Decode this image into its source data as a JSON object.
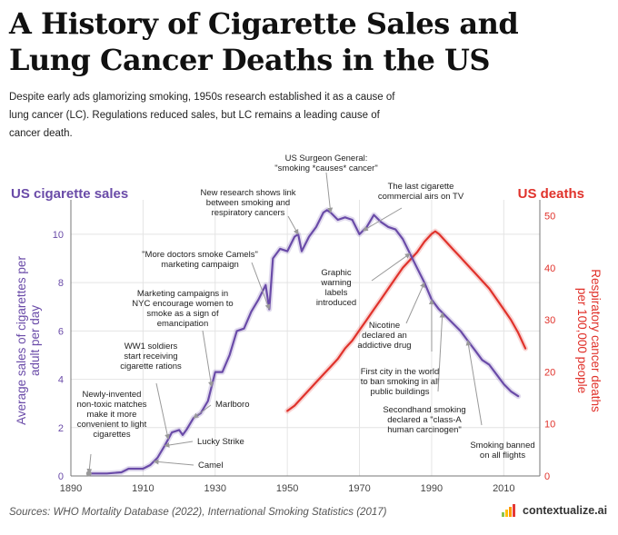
{
  "title_lines": [
    "A History of Cigarette Sales and",
    "Lung Cancer Deaths in the US"
  ],
  "subtitle": "Despite early ads glamorizing smoking, 1950s research established it as a cause of lung cancer (LC). Regulations reduced sales, but LC remains a leading cause of cancer death.",
  "sources": "Sources: WHO Mortality Database (2022), International Smoking Statistics (2017)",
  "brand": {
    "name": "contextualize.ai",
    "icon": "bar-chart-logo-icon"
  },
  "colors": {
    "sales": "#6a4ba8",
    "deaths": "#e0322b",
    "axis": "#777777",
    "arrow": "#999999"
  },
  "chart_data": {
    "type": "line",
    "left_axis_title": "US cigarette sales",
    "right_axis_title": "US deaths",
    "xlim": [
      1890,
      2020
    ],
    "xticks": [
      1890,
      1910,
      1930,
      1950,
      1970,
      1990,
      2010
    ],
    "ylabel": "Average sales of cigarettes per adult per day",
    "ylim": [
      0,
      11.2
    ],
    "yticks": [
      0,
      2,
      4,
      6,
      8,
      10
    ],
    "y2label": "Respiratory cancer deaths per 100,000 people",
    "y2lim": [
      0,
      52
    ],
    "y2ticks": [
      0,
      10,
      20,
      30,
      40,
      50
    ],
    "series": [
      {
        "name": "Cigarette sales",
        "axis": "left",
        "x": [
          1895,
          1900,
          1904,
          1906,
          1910,
          1912,
          1914,
          1916,
          1918,
          1920,
          1921,
          1922,
          1924,
          1926,
          1928,
          1930,
          1932,
          1934,
          1936,
          1938,
          1940,
          1942,
          1944,
          1945,
          1946,
          1948,
          1950,
          1952,
          1953,
          1954,
          1956,
          1958,
          1960,
          1961,
          1962,
          1964,
          1966,
          1968,
          1970,
          1972,
          1974,
          1976,
          1978,
          1980,
          1982,
          1984,
          1986,
          1988,
          1990,
          1992,
          1994,
          1996,
          1998,
          2000,
          2002,
          2004,
          2006,
          2008,
          2010,
          2012,
          2014
        ],
        "y": [
          0.1,
          0.1,
          0.15,
          0.3,
          0.3,
          0.45,
          0.75,
          1.25,
          1.8,
          1.9,
          1.7,
          1.9,
          2.4,
          2.6,
          3.1,
          4.3,
          4.3,
          5.0,
          6.0,
          6.1,
          6.8,
          7.3,
          7.9,
          6.9,
          9.0,
          9.4,
          9.3,
          9.9,
          10.0,
          9.3,
          9.9,
          10.3,
          10.9,
          11.0,
          10.9,
          10.6,
          10.7,
          10.6,
          10.0,
          10.3,
          10.8,
          10.5,
          10.3,
          10.2,
          9.8,
          9.2,
          8.6,
          8.0,
          7.3,
          6.9,
          6.6,
          6.3,
          6.0,
          5.6,
          5.2,
          4.8,
          4.6,
          4.2,
          3.8,
          3.5,
          3.3
        ]
      },
      {
        "name": "Respiratory cancer deaths",
        "axis": "right",
        "x": [
          1950,
          1952,
          1954,
          1956,
          1958,
          1960,
          1962,
          1964,
          1966,
          1968,
          1970,
          1972,
          1974,
          1976,
          1978,
          1980,
          1982,
          1984,
          1986,
          1988,
          1990,
          1991,
          1992,
          1994,
          1996,
          1998,
          2000,
          2002,
          2004,
          2006,
          2008,
          2010,
          2012,
          2014,
          2016
        ],
        "y": [
          12.5,
          13.5,
          15,
          16.5,
          18,
          19.5,
          21,
          22.5,
          24.5,
          26,
          28,
          30,
          32,
          34,
          36,
          38,
          40,
          41.5,
          43,
          45,
          46.5,
          47,
          46.5,
          45,
          43.5,
          42,
          40.5,
          39,
          37.5,
          36,
          34,
          32,
          30,
          27.5,
          24.5
        ]
      }
    ],
    "annotations": [
      {
        "id": "matches",
        "year": 1895,
        "series": "sales",
        "lines": [
          "Newly-invented",
          "non-toxic matches",
          "make it more",
          "convenient to light",
          "cigarettes"
        ]
      },
      {
        "id": "ww1",
        "year": 1917,
        "series": "sales",
        "lines": [
          "WW1 soldiers",
          "start receiving",
          "cigarette rations"
        ]
      },
      {
        "id": "marlboro",
        "year": 1924,
        "series": "sales",
        "lines": [
          "Marlboro"
        ]
      },
      {
        "id": "lucky",
        "year": 1916,
        "series": "sales",
        "lines": [
          "Lucky Strike"
        ]
      },
      {
        "id": "camel",
        "year": 1913,
        "series": "sales",
        "lines": [
          "Camel"
        ]
      },
      {
        "id": "nyc",
        "year": 1929,
        "series": "sales",
        "lines": [
          "Marketing campaigns in",
          "NYC encourage women to",
          "smoke as a sign of",
          "emancipation"
        ]
      },
      {
        "id": "doctors",
        "year": 1945,
        "series": "sales",
        "lines": [
          "\"More doctors smoke Camels\"",
          "marketing campaign"
        ]
      },
      {
        "id": "research",
        "year": 1953,
        "series": "sales",
        "lines": [
          "New research shows link",
          "between smoking and",
          "respiratory cancers"
        ]
      },
      {
        "id": "surgeon",
        "year": 1962,
        "series": "sales",
        "lines": [
          "US Surgeon General:",
          "\"smoking *causes* cancer\""
        ]
      },
      {
        "id": "tv",
        "year": 1971,
        "series": "sales",
        "lines": [
          "The last cigarette",
          "commercial airs on TV"
        ]
      },
      {
        "id": "labels",
        "year": 1984,
        "series": "sales",
        "lines": [
          "Graphic",
          "warning",
          "labels",
          "introduced"
        ]
      },
      {
        "id": "nicotine",
        "year": 1988,
        "series": "sales",
        "lines": [
          "Nicotine",
          "declared an",
          "addictive drug"
        ]
      },
      {
        "id": "city",
        "year": 1990,
        "series": "sales",
        "lines": [
          "First city in the world",
          "to ban smoking in all",
          "public buildings"
        ]
      },
      {
        "id": "secondhand",
        "year": 1993,
        "series": "sales",
        "lines": [
          "Secondhand smoking",
          "declared a \"class-A",
          "human carcinogen\""
        ]
      },
      {
        "id": "flights",
        "year": 2000,
        "series": "sales",
        "lines": [
          "Smoking banned",
          "on all flights"
        ]
      }
    ]
  }
}
